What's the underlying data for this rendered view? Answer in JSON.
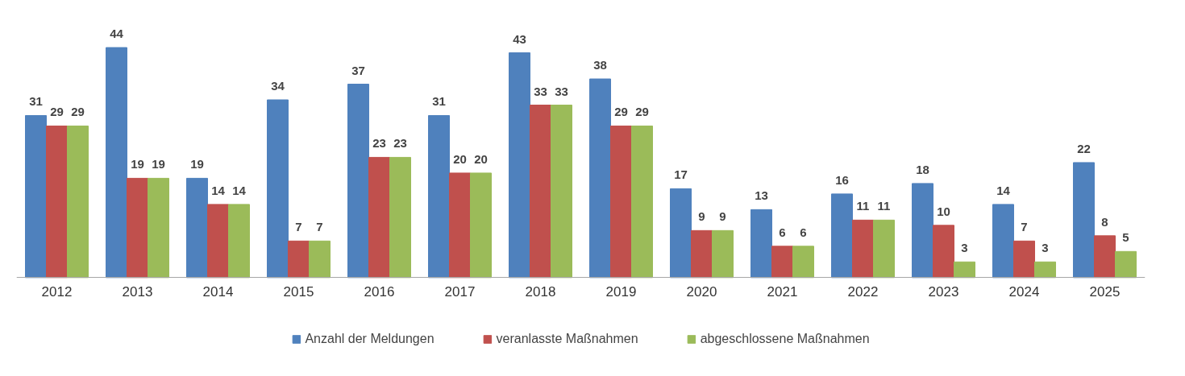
{
  "chart_data": {
    "type": "bar",
    "categories": [
      "2012",
      "2013",
      "2014",
      "2015",
      "2016",
      "2017",
      "2018",
      "2019",
      "2020",
      "2021",
      "2022",
      "2023",
      "2024",
      "2025"
    ],
    "series": [
      {
        "name": "Anzahl der Meldungen",
        "color": "#4f81bd",
        "values": [
          31,
          44,
          19,
          34,
          37,
          31,
          43,
          38,
          17,
          13,
          16,
          18,
          14,
          22
        ]
      },
      {
        "name": "veranlasste Maßnahmen",
        "color": "#c0504d",
        "values": [
          29,
          19,
          14,
          7,
          23,
          20,
          33,
          29,
          9,
          6,
          11,
          10,
          7,
          8
        ]
      },
      {
        "name": "abgeschlossene Maßnahmen",
        "color": "#9bbb59",
        "values": [
          29,
          19,
          14,
          7,
          23,
          20,
          33,
          29,
          9,
          6,
          11,
          3,
          3,
          5
        ]
      }
    ],
    "data_labels": true,
    "legend": "bottom"
  }
}
